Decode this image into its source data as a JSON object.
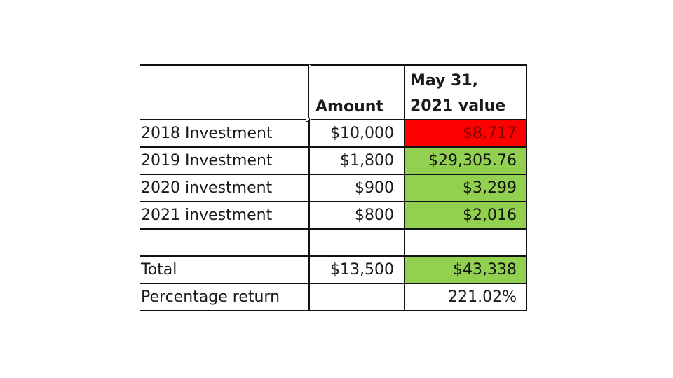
{
  "table": {
    "headers": {
      "label": "",
      "amount": "Amount",
      "value_line1": "May 31,",
      "value_line2": "2021 value"
    },
    "rows": [
      {
        "label": "2018 Investment",
        "amount": "$10,000",
        "value": "$8,717",
        "fill": "#ff0000"
      },
      {
        "label": "2019 Investment",
        "amount": "$1,800",
        "value": "$29,305.76",
        "fill": "#92d050"
      },
      {
        "label": "2020 investment",
        "amount": "$900",
        "value": "$3,299",
        "fill": "#92d050"
      },
      {
        "label": "2021 investment",
        "amount": "$800",
        "value": "$2,016",
        "fill": "#92d050"
      },
      {
        "label": "",
        "amount": "",
        "value": "",
        "fill": "#ffffff"
      },
      {
        "label": "Total",
        "amount": "$13,500",
        "value": "$43,338",
        "fill": "#92d050"
      },
      {
        "label": "Percentage return",
        "amount": "",
        "value": "221.02%",
        "fill": "#ffffff"
      }
    ]
  }
}
